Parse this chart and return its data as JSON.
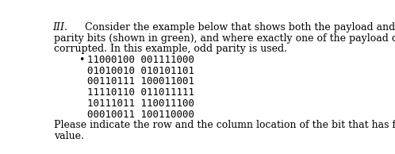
{
  "roman_numeral": "III.",
  "para1": "Consider the example below that shows both the payload and the two- dimensional",
  "para2": "parity bits (shown in green), and where exactly one of the payload or parity bits shown has been",
  "para3": "corrupted. In this example, odd parity is used.",
  "bullet_char": "•",
  "rows": [
    "11000100 001111000",
    "01010010 010101101",
    "00110111 100011001",
    "11110110 011011111",
    "10111011 110011100",
    "00010011 100110000"
  ],
  "footer1": "Please indicate the row and the column location of the bit that has flipped from its original",
  "footer2": "value.",
  "font_size_main": 9.0,
  "font_size_code": 9.0,
  "text_color": "#000000",
  "bg_color": "#ffffff"
}
